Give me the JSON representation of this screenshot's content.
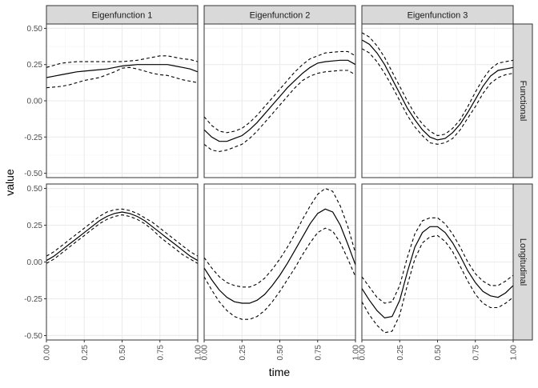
{
  "chart_data": {
    "type": "line",
    "xlabel": "time",
    "ylabel": "value",
    "xlim": [
      0,
      1
    ],
    "ylim": [
      -0.53,
      0.53
    ],
    "x_ticks": [
      0,
      0.25,
      0.5,
      0.75,
      1
    ],
    "x_tick_labels": [
      "0.00",
      "0.25",
      "0.50",
      "0.75",
      "1.00"
    ],
    "y_ticks": [
      -0.5,
      -0.25,
      0,
      0.25,
      0.5
    ],
    "y_tick_labels": [
      "-0.50",
      "-0.25",
      "0.00",
      "0.25",
      "0.50"
    ],
    "grid": true,
    "columns": [
      "Eigenfunction 1",
      "Eigenfunction 2",
      "Eigenfunction 3"
    ],
    "rows": [
      "Functional",
      "Longitudinal"
    ],
    "colors": {
      "line": "#000000",
      "strip": "#d9d9d9",
      "grid_major": "#ebebeb",
      "grid_minor": "#f5f5f5"
    },
    "x": [
      0,
      0.05,
      0.1,
      0.15,
      0.2,
      0.25,
      0.3,
      0.35,
      0.4,
      0.45,
      0.5,
      0.55,
      0.6,
      0.65,
      0.7,
      0.75,
      0.8,
      0.85,
      0.9,
      0.95,
      1.0
    ],
    "panels": [
      {
        "row": "Functional",
        "column": "Eigenfunction 1",
        "estimate": [
          0.16,
          0.17,
          0.18,
          0.19,
          0.2,
          0.205,
          0.21,
          0.215,
          0.22,
          0.23,
          0.24,
          0.245,
          0.25,
          0.25,
          0.25,
          0.25,
          0.25,
          0.24,
          0.23,
          0.22,
          0.2
        ],
        "lower": [
          0.09,
          0.095,
          0.1,
          0.11,
          0.125,
          0.14,
          0.15,
          0.16,
          0.18,
          0.2,
          0.225,
          0.23,
          0.22,
          0.205,
          0.19,
          0.18,
          0.175,
          0.16,
          0.145,
          0.135,
          0.125
        ],
        "upper": [
          0.23,
          0.245,
          0.26,
          0.265,
          0.27,
          0.27,
          0.27,
          0.27,
          0.27,
          0.27,
          0.27,
          0.275,
          0.28,
          0.29,
          0.3,
          0.31,
          0.31,
          0.3,
          0.29,
          0.285,
          0.27
        ]
      },
      {
        "row": "Functional",
        "column": "Eigenfunction 2",
        "estimate": [
          -0.2,
          -0.25,
          -0.28,
          -0.28,
          -0.26,
          -0.24,
          -0.2,
          -0.15,
          -0.09,
          -0.03,
          0.03,
          0.09,
          0.14,
          0.19,
          0.23,
          0.26,
          0.27,
          0.275,
          0.28,
          0.28,
          0.25
        ],
        "lower": [
          -0.3,
          -0.34,
          -0.35,
          -0.34,
          -0.32,
          -0.3,
          -0.26,
          -0.21,
          -0.15,
          -0.09,
          -0.03,
          0.03,
          0.09,
          0.14,
          0.17,
          0.19,
          0.2,
          0.205,
          0.21,
          0.21,
          0.18
        ],
        "upper": [
          -0.11,
          -0.17,
          -0.21,
          -0.22,
          -0.21,
          -0.19,
          -0.15,
          -0.1,
          -0.04,
          0.02,
          0.08,
          0.14,
          0.2,
          0.25,
          0.29,
          0.31,
          0.33,
          0.335,
          0.34,
          0.34,
          0.31
        ]
      },
      {
        "row": "Functional",
        "column": "Eigenfunction 3",
        "estimate": [
          0.42,
          0.39,
          0.33,
          0.25,
          0.15,
          0.05,
          -0.05,
          -0.13,
          -0.2,
          -0.25,
          -0.27,
          -0.26,
          -0.22,
          -0.16,
          -0.08,
          0.01,
          0.1,
          0.17,
          0.21,
          0.22,
          0.23
        ],
        "lower": [
          0.36,
          0.33,
          0.27,
          0.19,
          0.1,
          0.0,
          -0.1,
          -0.18,
          -0.24,
          -0.29,
          -0.3,
          -0.29,
          -0.26,
          -0.2,
          -0.12,
          -0.04,
          0.05,
          0.12,
          0.16,
          0.18,
          0.19
        ],
        "upper": [
          0.47,
          0.44,
          0.38,
          0.3,
          0.2,
          0.1,
          0.0,
          -0.09,
          -0.16,
          -0.21,
          -0.24,
          -0.23,
          -0.19,
          -0.13,
          -0.04,
          0.06,
          0.15,
          0.22,
          0.26,
          0.27,
          0.28
        ]
      },
      {
        "row": "Longitudinal",
        "column": "Eigenfunction 1",
        "estimate": [
          0.01,
          0.04,
          0.08,
          0.12,
          0.16,
          0.2,
          0.24,
          0.28,
          0.31,
          0.33,
          0.34,
          0.33,
          0.31,
          0.28,
          0.24,
          0.2,
          0.16,
          0.12,
          0.08,
          0.04,
          0.01
        ],
        "lower": [
          -0.01,
          0.02,
          0.06,
          0.1,
          0.14,
          0.18,
          0.22,
          0.26,
          0.29,
          0.31,
          0.32,
          0.31,
          0.29,
          0.26,
          0.22,
          0.17,
          0.13,
          0.09,
          0.05,
          0.02,
          -0.01
        ],
        "upper": [
          0.04,
          0.07,
          0.11,
          0.15,
          0.19,
          0.23,
          0.27,
          0.31,
          0.34,
          0.355,
          0.36,
          0.35,
          0.33,
          0.3,
          0.27,
          0.23,
          0.19,
          0.15,
          0.11,
          0.07,
          0.04
        ]
      },
      {
        "row": "Longitudinal",
        "column": "Eigenfunction 2",
        "estimate": [
          -0.04,
          -0.12,
          -0.19,
          -0.24,
          -0.27,
          -0.28,
          -0.28,
          -0.26,
          -0.22,
          -0.16,
          -0.09,
          -0.01,
          0.08,
          0.17,
          0.26,
          0.33,
          0.36,
          0.34,
          0.25,
          0.12,
          -0.02
        ],
        "lower": [
          -0.1,
          -0.19,
          -0.27,
          -0.33,
          -0.37,
          -0.39,
          -0.39,
          -0.37,
          -0.33,
          -0.27,
          -0.2,
          -0.12,
          -0.04,
          0.05,
          0.13,
          0.2,
          0.23,
          0.21,
          0.13,
          0.02,
          -0.1
        ],
        "upper": [
          0.03,
          -0.04,
          -0.1,
          -0.14,
          -0.16,
          -0.17,
          -0.17,
          -0.15,
          -0.11,
          -0.05,
          0.02,
          0.1,
          0.19,
          0.29,
          0.38,
          0.46,
          0.5,
          0.48,
          0.38,
          0.24,
          0.06
        ]
      },
      {
        "row": "Longitudinal",
        "column": "Eigenfunction 3",
        "estimate": [
          -0.18,
          -0.26,
          -0.33,
          -0.38,
          -0.37,
          -0.26,
          -0.07,
          0.1,
          0.2,
          0.24,
          0.24,
          0.2,
          0.13,
          0.04,
          -0.06,
          -0.14,
          -0.2,
          -0.23,
          -0.24,
          -0.21,
          -0.16
        ],
        "lower": [
          -0.27,
          -0.36,
          -0.43,
          -0.48,
          -0.47,
          -0.36,
          -0.16,
          0.02,
          0.13,
          0.17,
          0.18,
          0.14,
          0.07,
          -0.03,
          -0.13,
          -0.22,
          -0.28,
          -0.31,
          -0.31,
          -0.28,
          -0.24
        ],
        "upper": [
          -0.1,
          -0.17,
          -0.24,
          -0.28,
          -0.27,
          -0.16,
          0.03,
          0.19,
          0.28,
          0.3,
          0.3,
          0.26,
          0.19,
          0.1,
          0.0,
          -0.08,
          -0.13,
          -0.16,
          -0.16,
          -0.13,
          -0.09
        ]
      }
    ]
  }
}
